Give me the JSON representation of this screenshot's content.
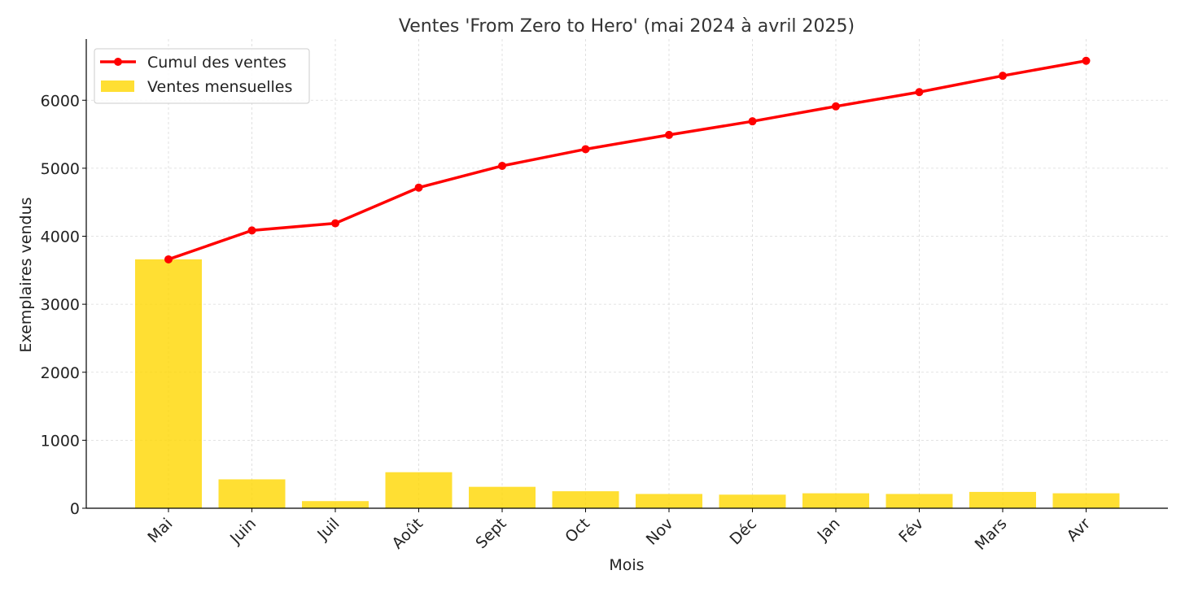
{
  "chart_data": {
    "type": "bar+line",
    "title": "Ventes 'From Zero to Hero' (mai 2024 à avril 2025)",
    "xlabel": "Mois",
    "ylabel": "Exemplaires vendus",
    "categories": [
      "Mai",
      "Juin",
      "Juil",
      "Août",
      "Sept",
      "Oct",
      "Nov",
      "Déc",
      "Jan",
      "Fév",
      "Mars",
      "Avr"
    ],
    "ylim": [
      0,
      6900
    ],
    "yticks": [
      0,
      1000,
      2000,
      3000,
      4000,
      5000,
      6000
    ],
    "grid": true,
    "legend_position": "top-left",
    "series": [
      {
        "name": "Cumul des ventes",
        "kind": "line",
        "color": "#ff0000",
        "values": [
          3660,
          4085,
          4190,
          4715,
          5035,
          5280,
          5490,
          5690,
          5910,
          6120,
          6360,
          6580
        ]
      },
      {
        "name": "Ventes mensuelles",
        "kind": "bar",
        "color": "#ffd700",
        "values": [
          3660,
          425,
          105,
          530,
          315,
          250,
          210,
          200,
          220,
          210,
          240,
          220
        ]
      }
    ]
  }
}
